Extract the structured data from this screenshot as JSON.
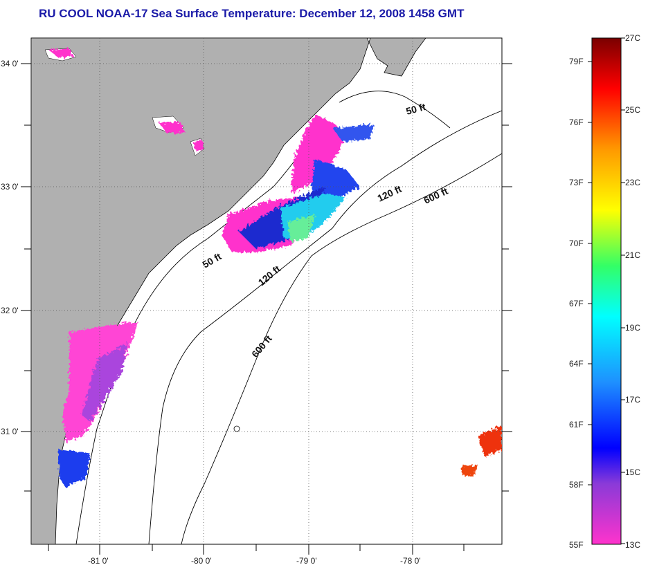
{
  "title": "RU COOL  NOAA-17  Sea Surface Temperature:  December 12, 2008 1458 GMT",
  "map": {
    "lat_labels": [
      "34 0'",
      "33 0'",
      "32 0'",
      "31 0'"
    ],
    "lon_labels": [
      "-81 0'",
      "-80 0'",
      "-79 0'",
      "-78 0'"
    ],
    "depth_labels": {
      "d50_north": "50 ft",
      "d120_north": "120 ft",
      "d600_north": "600 ft",
      "d50_mid": "50 ft",
      "d120_mid": "120 ft",
      "d600_south": "600 ft"
    },
    "colors": {
      "land": "#b0b0b0",
      "ocean": "#ffffff",
      "grid": "#555555"
    }
  },
  "colorbar": {
    "fahrenheit": [
      "79F",
      "76F",
      "73F",
      "70F",
      "67F",
      "64F",
      "61F",
      "58F",
      "55F"
    ],
    "celsius": [
      "27C",
      "25C",
      "23C",
      "21C",
      "19C",
      "17C",
      "15C",
      "13C"
    ]
  }
}
